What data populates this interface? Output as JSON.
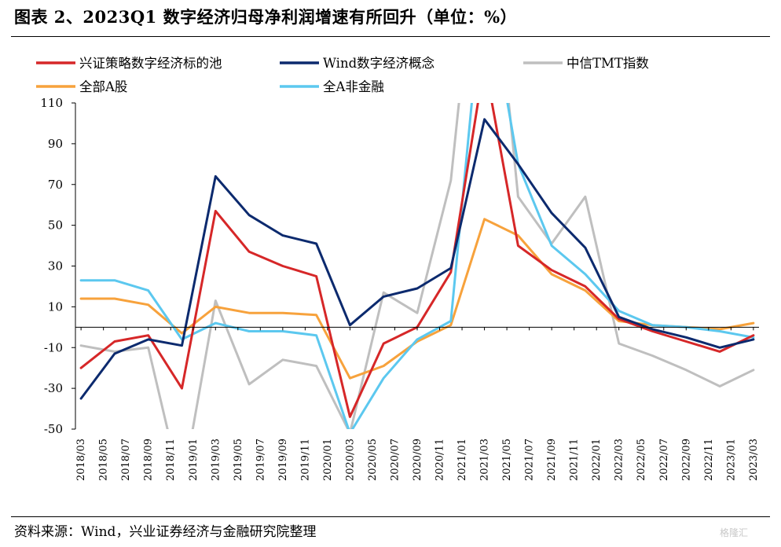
{
  "header": {
    "title": "图表 2、2023Q1 数字经济归母净利润增速有所回升（单位：%）"
  },
  "footer": {
    "source": "资料来源：Wind，兴业证券经济与金融研究院整理",
    "watermark": "格隆汇"
  },
  "chart_data": {
    "type": "line",
    "title": "",
    "xlabel": "",
    "ylabel": "",
    "ylim": [
      -50,
      110
    ],
    "y_ticks": [
      110,
      90,
      70,
      50,
      30,
      10,
      -10,
      -30,
      -50
    ],
    "grid": false,
    "legend_position": "top",
    "x": [
      "2018/03",
      "2018/06",
      "2018/09",
      "2018/12",
      "2019/03",
      "2019/06",
      "2019/09",
      "2019/12",
      "2020/03",
      "2020/06",
      "2020/09",
      "2020/12",
      "2021/03",
      "2021/06",
      "2021/09",
      "2021/12",
      "2022/03",
      "2022/06",
      "2022/09",
      "2022/12",
      "2023/03"
    ],
    "x_tick_labels": [
      "2018/03",
      "2018/05",
      "2018/07",
      "2018/09",
      "2018/11",
      "2019/01",
      "2019/03",
      "2019/05",
      "2019/07",
      "2019/09",
      "2019/11",
      "2020/01",
      "2020/03",
      "2020/05",
      "2020/07",
      "2020/09",
      "2020/11",
      "2021/01",
      "2021/03",
      "2021/05",
      "2021/07",
      "2021/09",
      "2021/11",
      "2022/01",
      "2022/03",
      "2022/05",
      "2022/07",
      "2022/09",
      "2022/11",
      "2023/01",
      "2023/03"
    ],
    "series": [
      {
        "name": "兴证策略数字经济标的池",
        "color": "#d62728",
        "values": [
          -20,
          -7,
          -4,
          -30,
          57,
          37,
          30,
          25,
          -44,
          -8,
          0,
          27,
          130,
          40,
          28,
          20,
          4,
          -2,
          -7,
          -12,
          -4
        ]
      },
      {
        "name": "Wind数字经济概念",
        "color": "#0c2a6e",
        "values": [
          -35,
          -13,
          -6,
          -9,
          74,
          55,
          45,
          41,
          1,
          15,
          19,
          29,
          102,
          80,
          56,
          39,
          5,
          -1,
          -5,
          -10,
          -6
        ]
      },
      {
        "name": "中信TMT指数",
        "color": "#bfbfbf",
        "values": [
          -9,
          -12,
          -10,
          -80,
          13,
          -28,
          -16,
          -19,
          -52,
          17,
          7,
          72,
          230,
          64,
          41,
          64,
          -8,
          -14,
          -21,
          -29,
          -21
        ]
      },
      {
        "name": "全部A股",
        "color": "#f7a23c",
        "values": [
          14,
          14,
          11,
          -3,
          10,
          7,
          7,
          6,
          -25,
          -19,
          -7,
          1,
          53,
          45,
          26,
          18,
          3,
          1,
          0,
          -1,
          2
        ]
      },
      {
        "name": "全A非金融",
        "color": "#5cc8ef",
        "values": [
          23,
          23,
          18,
          -6,
          2,
          -2,
          -2,
          -4,
          -52,
          -25,
          -6,
          3,
          175,
          80,
          40,
          26,
          8,
          1,
          0,
          -2,
          -5
        ]
      }
    ]
  }
}
